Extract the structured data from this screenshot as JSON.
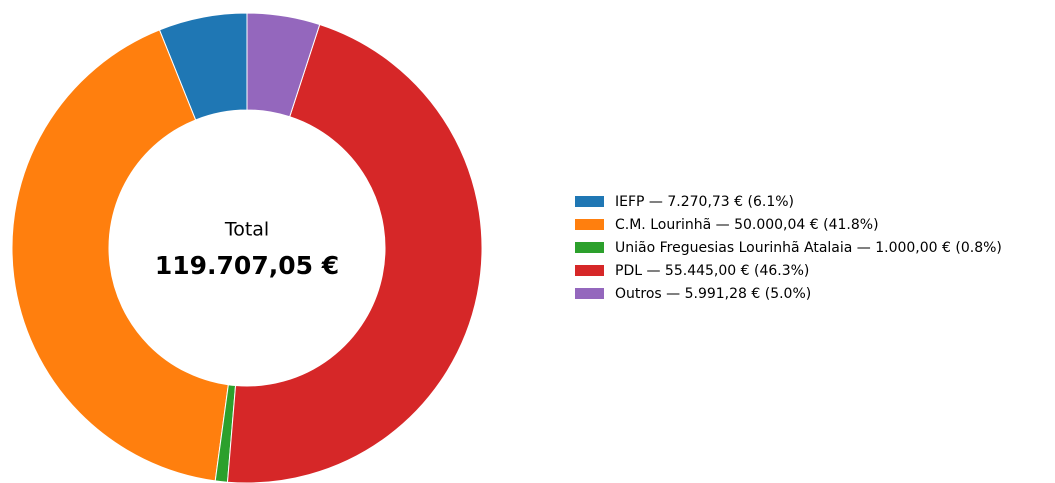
{
  "chart_data": {
    "type": "donut",
    "categories": [
      "IEFP — 7.270,73 € (6.1%)",
      "C.M. Lourinhã — 50.000,04 € (41.8%)",
      "União Freguesias Lourinhã Atalaia — 1.000,00 € (0.8%)",
      "PDL — 55.445,00 € (46.3%)",
      "Outros — 5.991,28 € (5.0%)"
    ],
    "values": [
      7270.73,
      50000.04,
      1000.0,
      55445.0,
      5991.28
    ],
    "colors": [
      "#1f77b4",
      "#ff7f0e",
      "#2ca02c",
      "#d62728",
      "#9467bd"
    ],
    "center_title": "Total",
    "center_text": "119.707,05 €",
    "legend": "right"
  }
}
